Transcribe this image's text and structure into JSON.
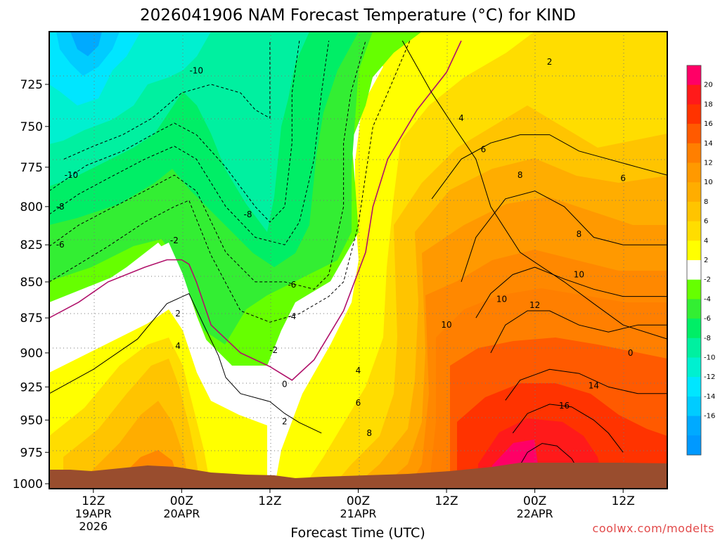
{
  "chart_data": {
    "type": "heatmap",
    "title": "2026041906 NAM Forecast Temperature (°C) for KIND",
    "xlabel": "Forecast Time (UTC)",
    "ylabel": "",
    "y_axis": {
      "ticks": [
        725,
        750,
        775,
        800,
        825,
        850,
        875,
        900,
        925,
        950,
        975,
        1000
      ],
      "range": [
        1000,
        700
      ],
      "units": "hPa"
    },
    "x_axis": {
      "range_hours": [
        0,
        84
      ],
      "ticks": [
        {
          "hour": 6,
          "label1": "12Z",
          "label2": "19APR",
          "label3": "2026"
        },
        {
          "hour": 18,
          "label1": "00Z",
          "label2": "20APR",
          "label3": ""
        },
        {
          "hour": 30,
          "label1": "12Z",
          "label2": "",
          "label3": ""
        },
        {
          "hour": 42,
          "label1": "00Z",
          "label2": "21APR",
          "label3": ""
        },
        {
          "hour": 54,
          "label1": "12Z",
          "label2": "",
          "label3": ""
        },
        {
          "hour": 66,
          "label1": "00Z",
          "label2": "22APR",
          "label3": ""
        },
        {
          "hour": 78,
          "label1": "12Z",
          "label2": "",
          "label3": ""
        }
      ]
    },
    "colorbar": {
      "units": "°C",
      "labels": [
        "20",
        "18",
        "16",
        "14",
        "12",
        "10",
        "8",
        "6",
        "4",
        "2",
        "-2",
        "-4",
        "-6",
        "-8",
        "-10",
        "-12",
        "-14",
        "-16"
      ],
      "colors": [
        "#ff0066",
        "#ff1a1a",
        "#ff3300",
        "#ff5a00",
        "#ff7f00",
        "#ff9900",
        "#ffad00",
        "#ffc400",
        "#ffdd00",
        "#ffff00",
        "#ffffff",
        "#66ff00",
        "#33ee33",
        "#00ee66",
        "#00f0a0",
        "#00f0d0",
        "#00e6ff",
        "#00ccff",
        "#00aaff",
        "#0099ff"
      ]
    },
    "series": [
      {
        "name": "2",
        "values": [
          [
            0,
            930
          ],
          [
            6,
            912
          ],
          [
            12,
            890
          ],
          [
            16,
            865
          ],
          [
            19,
            858
          ],
          [
            21,
            880
          ],
          [
            23,
            902
          ],
          [
            24,
            918
          ],
          [
            26,
            930
          ],
          [
            30,
            936
          ],
          [
            32,
            945
          ],
          [
            34,
            952
          ],
          [
            37,
            960
          ]
        ]
      },
      {
        "name": "0",
        "values": [
          [
            0,
            875
          ],
          [
            4,
            864
          ],
          [
            8,
            850
          ],
          [
            13,
            840
          ],
          [
            16,
            835
          ],
          [
            18,
            835
          ],
          [
            19,
            838
          ],
          [
            20,
            850
          ],
          [
            22,
            880
          ],
          [
            26,
            900
          ],
          [
            30,
            910
          ],
          [
            33,
            920
          ],
          [
            36,
            905
          ],
          [
            40,
            870
          ],
          [
            43,
            830
          ],
          [
            44,
            800
          ],
          [
            46,
            770
          ],
          [
            50,
            740
          ],
          [
            54,
            718
          ],
          [
            56,
            700
          ]
        ]
      },
      {
        "name": "-2",
        "values": [
          [
            0,
            850
          ],
          [
            4,
            838
          ],
          [
            8,
            826
          ],
          [
            13,
            810
          ],
          [
            17,
            800
          ],
          [
            19,
            796
          ],
          [
            20,
            808
          ],
          [
            22,
            832
          ],
          [
            26,
            870
          ],
          [
            30,
            878
          ],
          [
            34,
            872
          ],
          [
            38,
            860
          ],
          [
            40,
            850
          ],
          [
            42,
            812
          ],
          [
            43,
            780
          ],
          [
            44,
            750
          ],
          [
            46,
            730
          ],
          [
            49,
            700
          ]
        ]
      },
      {
        "name": "-4",
        "values": [
          [
            0,
            826
          ],
          [
            4,
            812
          ],
          [
            8,
            802
          ],
          [
            13,
            790
          ],
          [
            17,
            780
          ],
          [
            20,
            790
          ],
          [
            24,
            830
          ],
          [
            28,
            850
          ],
          [
            32,
            850
          ],
          [
            36,
            855
          ],
          [
            38,
            845
          ],
          [
            40,
            800
          ],
          [
            40,
            760
          ],
          [
            41,
            730
          ],
          [
            43,
            700
          ]
        ]
      },
      {
        "name": "-6",
        "values": [
          [
            0,
            805
          ],
          [
            4,
            792
          ],
          [
            8,
            782
          ],
          [
            13,
            770
          ],
          [
            17,
            762
          ],
          [
            20,
            770
          ],
          [
            24,
            800
          ],
          [
            28,
            820
          ],
          [
            32,
            825
          ],
          [
            34,
            810
          ],
          [
            36,
            770
          ],
          [
            37,
            730
          ],
          [
            38,
            700
          ]
        ]
      },
      {
        "name": "-8",
        "values": [
          [
            0,
            790
          ],
          [
            5,
            774
          ],
          [
            10,
            765
          ],
          [
            14,
            755
          ],
          [
            17,
            748
          ],
          [
            20,
            755
          ],
          [
            24,
            775
          ],
          [
            28,
            800
          ],
          [
            30,
            810
          ],
          [
            32,
            800
          ],
          [
            33,
            760
          ],
          [
            33,
            730
          ],
          [
            34,
            700
          ]
        ]
      },
      {
        "name": "-10",
        "values": [
          [
            2,
            770
          ],
          [
            6,
            762
          ],
          [
            10,
            755
          ],
          [
            14,
            745
          ],
          [
            18,
            730
          ],
          [
            22,
            725
          ],
          [
            26,
            730
          ],
          [
            28,
            740
          ],
          [
            30,
            745
          ],
          [
            30,
            720
          ],
          [
            30,
            700
          ]
        ]
      },
      {
        "name": "4",
        "values": [
          [
            48,
            700
          ],
          [
            52,
            730
          ],
          [
            55,
            750
          ],
          [
            58,
            770
          ],
          [
            60,
            800
          ],
          [
            64,
            830
          ],
          [
            70,
            850
          ],
          [
            74,
            865
          ],
          [
            78,
            880
          ],
          [
            84,
            890
          ]
        ]
      },
      {
        "name": "6",
        "values": [
          [
            52,
            795
          ],
          [
            56,
            770
          ],
          [
            60,
            760
          ],
          [
            64,
            755
          ],
          [
            68,
            755
          ],
          [
            72,
            765
          ],
          [
            76,
            770
          ],
          [
            80,
            775
          ],
          [
            84,
            780
          ]
        ]
      },
      {
        "name": "8",
        "values": [
          [
            56,
            850
          ],
          [
            58,
            820
          ],
          [
            62,
            795
          ],
          [
            66,
            790
          ],
          [
            70,
            800
          ],
          [
            74,
            820
          ],
          [
            78,
            825
          ],
          [
            84,
            825
          ]
        ]
      },
      {
        "name": "10",
        "values": [
          [
            58,
            875
          ],
          [
            60,
            858
          ],
          [
            63,
            845
          ],
          [
            66,
            840
          ],
          [
            70,
            848
          ],
          [
            74,
            855
          ],
          [
            78,
            860
          ],
          [
            84,
            860
          ]
        ]
      },
      {
        "name": "12",
        "values": [
          [
            60,
            900
          ],
          [
            62,
            880
          ],
          [
            65,
            870
          ],
          [
            68,
            870
          ],
          [
            72,
            880
          ],
          [
            76,
            885
          ],
          [
            80,
            880
          ],
          [
            84,
            880
          ]
        ]
      },
      {
        "name": "14",
        "values": [
          [
            62,
            935
          ],
          [
            64,
            920
          ],
          [
            68,
            912
          ],
          [
            72,
            915
          ],
          [
            76,
            925
          ],
          [
            80,
            930
          ],
          [
            84,
            930
          ]
        ]
      },
      {
        "name": "16",
        "values": [
          [
            63,
            960
          ],
          [
            65,
            945
          ],
          [
            68,
            938
          ],
          [
            71,
            940
          ],
          [
            74,
            950
          ],
          [
            76,
            960
          ],
          [
            78,
            975
          ]
        ]
      },
      {
        "name": "18",
        "values": [
          [
            64,
            985
          ],
          [
            65,
            975
          ],
          [
            67,
            968
          ],
          [
            69,
            970
          ],
          [
            71,
            980
          ],
          [
            72,
            990
          ]
        ]
      }
    ],
    "contour_labels": [
      {
        "text": "-10",
        "hour": 20,
        "p": 717
      },
      {
        "text": "-10",
        "hour": 3,
        "p": 780
      },
      {
        "text": "-8",
        "hour": 1.5,
        "p": 800
      },
      {
        "text": "-8",
        "hour": 27,
        "p": 805
      },
      {
        "text": "-6",
        "hour": 1.5,
        "p": 825
      },
      {
        "text": "-2",
        "hour": 17,
        "p": 822
      },
      {
        "text": "-6",
        "hour": 33,
        "p": 852
      },
      {
        "text": "-4",
        "hour": 33,
        "p": 874
      },
      {
        "text": "-2",
        "hour": 30.5,
        "p": 898
      },
      {
        "text": "0",
        "hour": 32,
        "p": 923
      },
      {
        "text": "2",
        "hour": 17.5,
        "p": 872
      },
      {
        "text": "4",
        "hour": 17.5,
        "p": 895
      },
      {
        "text": "2",
        "hour": 32,
        "p": 951
      },
      {
        "text": "4",
        "hour": 42,
        "p": 913
      },
      {
        "text": "6",
        "hour": 42,
        "p": 937
      },
      {
        "text": "8",
        "hour": 43.5,
        "p": 960
      },
      {
        "text": "10",
        "hour": 54,
        "p": 880
      },
      {
        "text": "10",
        "hour": 61.5,
        "p": 862
      },
      {
        "text": "12",
        "hour": 66,
        "p": 866
      },
      {
        "text": "14",
        "hour": 74,
        "p": 924
      },
      {
        "text": "16",
        "hour": 70,
        "p": 939
      },
      {
        "text": "10",
        "hour": 72,
        "p": 845
      },
      {
        "text": "8",
        "hour": 72,
        "p": 818
      },
      {
        "text": "6",
        "hour": 78,
        "p": 782
      },
      {
        "text": "6",
        "hour": 59,
        "p": 764
      },
      {
        "text": "4",
        "hour": 56,
        "p": 745
      },
      {
        "text": "8",
        "hour": 64,
        "p": 780
      },
      {
        "text": "2",
        "hour": 68,
        "p": 712
      },
      {
        "text": "0",
        "hour": 79,
        "p": 900
      }
    ],
    "grid": true,
    "legend": "right"
  },
  "footer": {
    "credit": "coolwx.com/modelts"
  }
}
